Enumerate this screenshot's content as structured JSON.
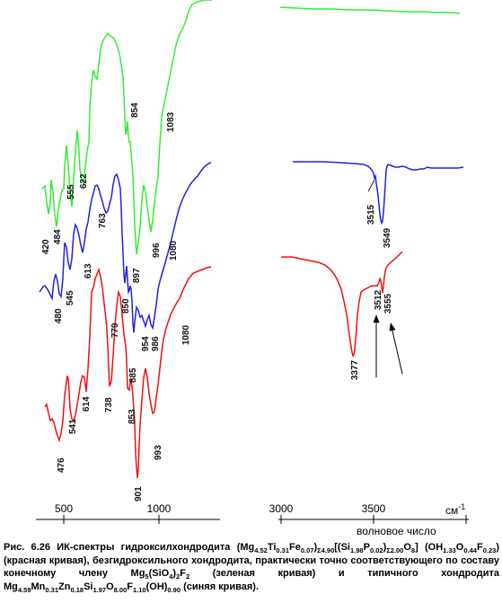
{
  "chart_data": {
    "type": "line",
    "title": "",
    "xlabel": "волновое число",
    "ylabel": "",
    "unit": "см-1",
    "panels": [
      {
        "name": "left",
        "xlim": [
          380,
          1170
        ],
        "ticks": [
          "500",
          "1000"
        ],
        "tick_values": [
          500,
          1000
        ]
      },
      {
        "name": "right",
        "xlim": [
          3000,
          3980
        ],
        "ticks": [
          "3000",
          "3500"
        ],
        "tick_values": [
          3000,
          3500
        ]
      }
    ],
    "series": [
      {
        "color": "#33ee33",
        "low_peaks": [
          420,
          484,
          555,
          622,
          763,
          854,
          897,
          996,
          1083
        ],
        "high_peaks": []
      },
      {
        "color": "#2222dd",
        "low_peaks": [
          480,
          545,
          613,
          779,
          850,
          885,
          954,
          986,
          1080
        ],
        "high_peaks": [
          3515,
          3549
        ]
      },
      {
        "color": "#ee1111",
        "low_peaks": [
          476,
          541,
          614,
          738,
          853,
          901,
          993,
          1080
        ],
        "high_peaks": [
          3377,
          3512,
          3555
        ]
      }
    ],
    "peak_labels": {
      "green": [
        "420",
        "484",
        "555",
        "622",
        "763",
        "854",
        "897",
        "996",
        "1083"
      ],
      "blue": [
        "480",
        "545",
        "613",
        "779",
        "850",
        "885",
        "954",
        "986",
        "1080",
        "3515",
        "3549"
      ],
      "red": [
        "476",
        "541",
        "614",
        "738",
        "853",
        "901",
        "993",
        "1080",
        "3377",
        "3512",
        "3555"
      ]
    }
  },
  "caption": {
    "p01": "Рис. 6.26 ИК-спектры гидроксилхондродита (Mg",
    "s01": "4.52",
    "p02": "Ti",
    "s02": "0.31",
    "p03": "Fe",
    "s03": "0.07",
    "p04": ")",
    "s04": "Σ4.90",
    "p05": "[(Si",
    "s05": "1.98",
    "p06": "P",
    "s06": "0.02",
    "p07": ")",
    "s07": "Σ2.00",
    "p08": "O",
    "s08": "8",
    "p09": "] (OH",
    "s09": "1.33",
    "p10": "O",
    "s10": "0.44",
    "p11": "F",
    "s11": "0.23",
    "p12": ") (красная кривая), безгидроксильного хондродита, практически точно соответствующего по составу конечному члену Mg",
    "s12": "5",
    "p13": "(SiO",
    "s13": "4",
    "p14": ")",
    "s14": "2",
    "p15": "F",
    "s15": "2",
    "p16": " (зеленая кривая) и типичного хондродита Mg",
    "s16": "4.59",
    "p17": "Mn",
    "s17": "0.31",
    "p18": "Zn",
    "s18": "0.18",
    "p19": "Si",
    "s19": "1.97",
    "p20": "O",
    "s20": "8.00",
    "p21": "F",
    "s21": "1.10",
    "p22": "(OH)",
    "s22": "0.90",
    "p23": " (синяя кривая)."
  }
}
